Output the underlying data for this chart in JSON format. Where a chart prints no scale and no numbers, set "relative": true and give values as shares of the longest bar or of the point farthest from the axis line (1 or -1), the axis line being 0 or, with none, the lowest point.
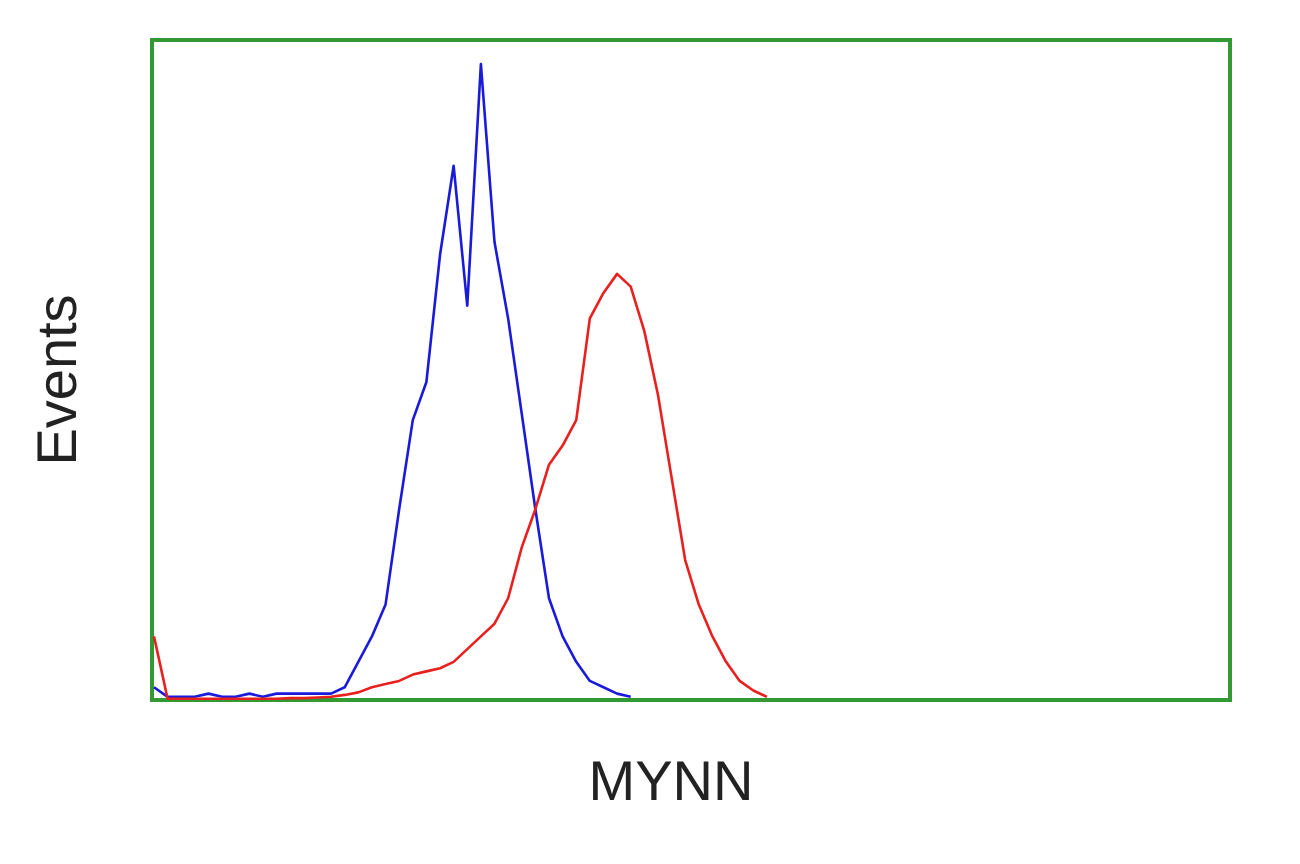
{
  "chart_data": {
    "type": "line",
    "relative": true,
    "xlabel": "MYNN",
    "ylabel": "Events",
    "categories": [
      null,
      null,
      null,
      null,
      null,
      null,
      null,
      null,
      null,
      null,
      null,
      null,
      null,
      null,
      null,
      null,
      null,
      null,
      null,
      null,
      null,
      null,
      null,
      null,
      null,
      null,
      null,
      null,
      null,
      null,
      null,
      null,
      null,
      null,
      null,
      null,
      null,
      null,
      null,
      null,
      null,
      null,
      null,
      null,
      null,
      null,
      null,
      null,
      null,
      null,
      null,
      null,
      null,
      null,
      null,
      null,
      null,
      null,
      null,
      null,
      null,
      null,
      null,
      null,
      null,
      null,
      null,
      null,
      null,
      null,
      null,
      null,
      null,
      null,
      null,
      null,
      null,
      null,
      null,
      null
    ],
    "series": [
      {
        "color": "#1a1adb",
        "values": [
          0.02,
          0.005,
          0.005,
          0.005,
          0.01,
          0.005,
          0.005,
          0.01,
          0.005,
          0.01,
          0.01,
          0.01,
          0.01,
          0.01,
          0.02,
          0.06,
          0.1,
          0.15,
          0.3,
          0.44,
          0.5,
          0.7,
          0.84,
          0.62,
          1,
          0.72,
          0.6,
          0.45,
          0.3,
          0.16,
          0.1,
          0.06,
          0.03,
          0.02,
          0.01,
          0.005,
          null,
          null,
          null,
          null,
          null,
          null,
          null,
          null,
          null,
          null,
          null,
          null,
          null,
          null,
          null,
          null,
          null,
          null,
          null,
          null,
          null,
          null,
          null,
          null,
          null,
          null,
          null,
          null,
          null,
          null,
          null,
          null,
          null,
          null,
          null,
          null,
          null,
          null,
          null,
          null,
          null,
          null,
          null,
          null
        ]
      },
      {
        "color": "#e8201e",
        "values": [
          0.1,
          0.002,
          0.002,
          0.002,
          0.002,
          0.002,
          0.002,
          0.002,
          0.002,
          0.002,
          0.003,
          0.003,
          0.004,
          0.005,
          0.008,
          0.012,
          0.02,
          0.025,
          0.03,
          0.04,
          0.045,
          0.05,
          0.06,
          0.08,
          0.1,
          0.12,
          0.16,
          0.24,
          0.3,
          0.37,
          0.4,
          0.44,
          0.6,
          0.64,
          0.67,
          0.65,
          0.58,
          0.48,
          0.35,
          0.22,
          0.15,
          0.1,
          0.06,
          0.03,
          0.015,
          0.005,
          null,
          null,
          null,
          null,
          null,
          null,
          null,
          null,
          null,
          null,
          null,
          null,
          null,
          null,
          null,
          null,
          null,
          null,
          null,
          null,
          null,
          null,
          null,
          null,
          null,
          null,
          null,
          null,
          null,
          null,
          null,
          null,
          null,
          null
        ]
      }
    ]
  }
}
